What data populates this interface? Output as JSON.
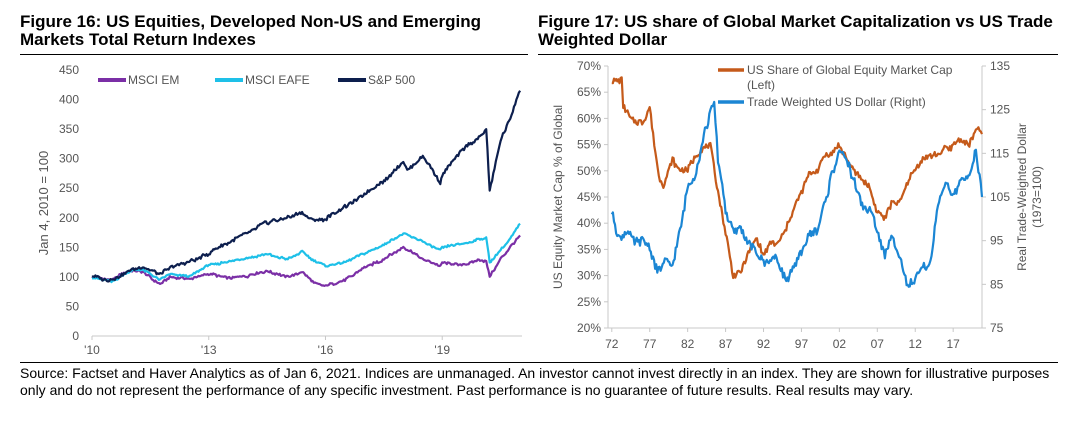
{
  "figures": {
    "fig16_title": "Figure 16: US Equities, Developed Non-US and Emerging Markets Total Return Indexes",
    "fig17_title": "Figure 17: US share of Global Market Capitalization vs US Trade Weighted Dollar"
  },
  "source": "Source: Factset and Haver Analytics as of Jan 6, 2021. Indices are unmanaged. An investor cannot invest directly in an index. They are shown for illustrative purposes only and do not represent the performance of any specific investment. Past performance is no guarantee of future results. Real results may vary.",
  "colors": {
    "em": "#7b2fa6",
    "eafe": "#1ec0e8",
    "sp500": "#0d1f4e",
    "share": "#c55a1a",
    "dollar": "#1b86d4",
    "axis": "#c8c8c8"
  },
  "chart_data": [
    {
      "type": "line",
      "ylabel": "Jan 4, 2010 = 100",
      "ylim": [
        0,
        450
      ],
      "yticks": [
        0,
        50,
        100,
        150,
        200,
        250,
        300,
        350,
        400,
        450
      ],
      "xlim": [
        2010,
        2021.05
      ],
      "xticks": [
        {
          "x": 2010,
          "label": "'10"
        },
        {
          "x": 2013,
          "label": "'13"
        },
        {
          "x": 2016,
          "label": "'16"
        },
        {
          "x": 2019,
          "label": "'19"
        }
      ],
      "legend": "top-left",
      "x": [
        2010,
        2010.5,
        2011,
        2011.3,
        2011.75,
        2012,
        2012.5,
        2013,
        2013.5,
        2014,
        2014.5,
        2015,
        2015.4,
        2015.7,
        2016,
        2016.5,
        2017,
        2017.5,
        2018,
        2018.1,
        2018.5,
        2018.95,
        2019,
        2019.5,
        2020,
        2020.13,
        2020.22,
        2020.5,
        2020.75,
        2021
      ],
      "series": [
        {
          "name": "MSCI EM",
          "color_key": "em",
          "values": [
            100,
            95,
            112,
            108,
            88,
            100,
            96,
            105,
            98,
            102,
            110,
            100,
            108,
            90,
            85,
            95,
            115,
            130,
            150,
            147,
            130,
            118,
            125,
            120,
            130,
            125,
            100,
            130,
            150,
            170
          ]
        },
        {
          "name": "MSCI EAFE",
          "color_key": "eafe",
          "values": [
            100,
            92,
            110,
            112,
            95,
            105,
            100,
            120,
            125,
            132,
            138,
            130,
            142,
            128,
            118,
            125,
            140,
            155,
            172,
            170,
            160,
            145,
            150,
            155,
            165,
            165,
            125,
            145,
            165,
            190
          ]
        },
        {
          "name": "S&P 500",
          "color_key": "sp500",
          "values": [
            100,
            95,
            112,
            116,
            104,
            115,
            125,
            140,
            158,
            175,
            192,
            200,
            208,
            195,
            198,
            218,
            240,
            262,
            295,
            280,
            305,
            260,
            272,
            315,
            340,
            350,
            245,
            330,
            370,
            415
          ]
        }
      ]
    },
    {
      "type": "line",
      "ylabel": "US Equity Market Cap % of Global",
      "ylabel_right": "Real Trade-Weighted Dollar (1973=100)",
      "ylim": [
        20,
        70
      ],
      "ylim_right": [
        75,
        135
      ],
      "yticks": [
        20,
        25,
        30,
        35,
        40,
        45,
        50,
        55,
        60,
        65,
        70
      ],
      "yticks_right": [
        75,
        85,
        95,
        105,
        115,
        125,
        135
      ],
      "xlim": [
        1971.5,
        2020.8
      ],
      "xticks": [
        {
          "x": 1972,
          "label": "72"
        },
        {
          "x": 1977,
          "label": "77"
        },
        {
          "x": 1982,
          "label": "82"
        },
        {
          "x": 1987,
          "label": "87"
        },
        {
          "x": 1992,
          "label": "92"
        },
        {
          "x": 1997,
          "label": "97"
        },
        {
          "x": 2002,
          "label": "02"
        },
        {
          "x": 2007,
          "label": "07"
        },
        {
          "x": 2012,
          "label": "12"
        },
        {
          "x": 2017,
          "label": "17"
        }
      ],
      "legend": "top-right",
      "series": [
        {
          "name": "US Share of Global Equity Market Cap (Left)",
          "axis": "left",
          "color_key": "share",
          "x": [
            1972,
            1973.3,
            1973.5,
            1974.5,
            1976,
            1977,
            1978.2,
            1978.8,
            1980,
            1981,
            1982,
            1983,
            1984,
            1985,
            1986,
            1987,
            1988,
            1989,
            1990,
            1991,
            1992,
            1993,
            1994,
            1995,
            1996,
            1997,
            1998,
            1999,
            2000,
            2001,
            2002,
            2003,
            2004,
            2005,
            2006,
            2007,
            2008,
            2009,
            2010,
            2011,
            2012,
            2013,
            2014,
            2015,
            2016,
            2017,
            2018,
            2019,
            2020,
            2020.8
          ],
          "values": [
            67,
            67,
            62,
            60,
            59,
            62,
            49,
            47,
            52,
            50,
            50,
            53,
            54,
            55,
            46,
            38,
            30,
            31,
            34,
            37,
            34,
            36,
            36,
            39,
            43,
            46,
            49,
            50,
            53,
            53,
            55,
            52,
            50,
            48,
            47,
            42,
            41,
            44,
            44,
            48,
            50,
            52,
            53,
            53,
            54,
            55,
            56,
            55,
            58,
            57
          ]
        },
        {
          "name": "Trade Weighted US Dollar (Right)",
          "axis": "right",
          "color_key": "dollar",
          "x": [
            1972,
            1973,
            1974,
            1975,
            1976,
            1977,
            1978,
            1979,
            1980,
            1981,
            1982,
            1983,
            1984,
            1985,
            1985.5,
            1986,
            1987,
            1988,
            1989,
            1990,
            1991,
            1992,
            1993,
            1994,
            1995,
            1996,
            1997,
            1998,
            1999,
            2000,
            2001,
            2002,
            2003,
            2004,
            2005,
            2006,
            2007,
            2008,
            2009,
            2010,
            2011,
            2012,
            2013,
            2014,
            2015,
            2016,
            2017,
            2018,
            2019,
            2020,
            2020.8
          ],
          "values": [
            101,
            96,
            97,
            94,
            95,
            93,
            88,
            90,
            89,
            97,
            107,
            110,
            118,
            125,
            127,
            114,
            102,
            97,
            98,
            94,
            92,
            90,
            91,
            90,
            86,
            88,
            92,
            96,
            97,
            103,
            110,
            116,
            113,
            109,
            103,
            102,
            97,
            91,
            96,
            92,
            84,
            86,
            89,
            90,
            103,
            108,
            106,
            108,
            110,
            115,
            105
          ]
        }
      ]
    }
  ]
}
